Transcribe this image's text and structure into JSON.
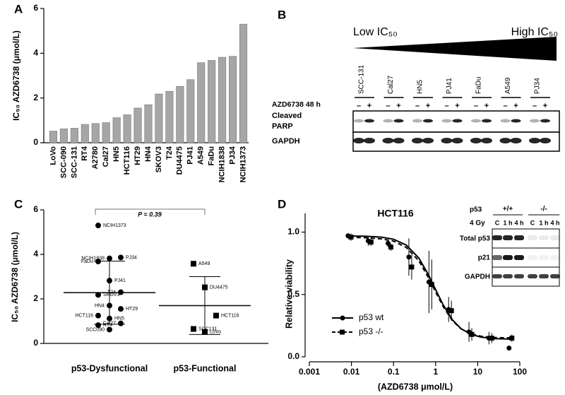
{
  "panel_labels": [
    "A",
    "B",
    "C",
    "D"
  ],
  "chart_data": [
    {
      "type": "bar",
      "ylabel": "IC₅₀ AZD6738 (μmol/L)",
      "categories": [
        "LoVo",
        "SCC-090",
        "SCC-131",
        "RT4",
        "A2780",
        "Cal27",
        "HN5",
        "HCT116",
        "HT29",
        "HN4",
        "SKOV3",
        "T24",
        "DU4475",
        "PJ41",
        "A549",
        "FaDu",
        "NCIH1838",
        "PJ34",
        "NCIH1373"
      ],
      "values": [
        0.52,
        0.62,
        0.65,
        0.82,
        0.86,
        0.9,
        1.12,
        1.25,
        1.55,
        1.7,
        2.18,
        2.3,
        2.52,
        2.82,
        3.58,
        3.68,
        3.82,
        3.86,
        5.3
      ],
      "color": "#a6a6a6",
      "ylim": [
        0,
        6
      ],
      "yticks": [
        0,
        2,
        4,
        6
      ]
    },
    {
      "type": "dot_plot",
      "ylabel": "IC₅₀ AZD6738 (μmol/L)",
      "annotation": "P = 0.39",
      "categories": [
        "p53-Dysfunctional",
        "p53-Functional"
      ],
      "groups": [
        {
          "marker": "circle",
          "labels": [
            "NCIH1373",
            "NCIH1838",
            "PJ34",
            "FaDu",
            "PJ41",
            "T24",
            "SKOV3",
            "HN4",
            "HT29",
            "HCT116",
            "HN5",
            "Cal27",
            "RT4",
            "SCC090"
          ],
          "values": [
            5.3,
            3.82,
            3.86,
            3.68,
            2.82,
            2.3,
            2.18,
            1.7,
            1.55,
            1.25,
            1.12,
            0.9,
            0.82,
            0.62
          ],
          "mean": 2.28,
          "sd_upper": 3.7,
          "sd_lower": 0.86
        },
        {
          "marker": "square",
          "labels": [
            "A549",
            "DU4475",
            "HCT116",
            "SCC131",
            "LoVo"
          ],
          "values": [
            3.58,
            2.52,
            1.25,
            0.65,
            0.52
          ],
          "mean": 1.7,
          "sd_upper": 3.0,
          "sd_lower": 0.4
        }
      ],
      "ylim": [
        0,
        6
      ],
      "yticks": [
        0,
        2,
        4,
        6
      ]
    },
    {
      "type": "line",
      "title": "HCT116",
      "xlabel": "(AZD6738 μmol/L)",
      "ylabel": "Relative viability",
      "xscale": "log",
      "x": [
        0.009,
        0.027,
        0.08,
        0.25,
        0.75,
        2.2,
        6.7,
        20,
        60
      ],
      "fit_x": [
        0.009,
        0.02,
        0.05,
        0.1,
        0.2,
        0.4,
        0.7,
        1,
        1.5,
        2.5,
        4,
        7,
        12,
        25,
        60
      ],
      "series": [
        {
          "name": "p53 wt",
          "color": "#000000",
          "marker": "circle",
          "dashed": false,
          "values": [
            0.97,
            0.93,
            0.91,
            0.8,
            0.6,
            0.38,
            0.2,
            0.15,
            0.07
          ],
          "errors": [
            0.02,
            0.04,
            0.03,
            0.15,
            0.25,
            0.1,
            0.08,
            0.05,
            0.02
          ],
          "fit": [
            0.969,
            0.967,
            0.96,
            0.943,
            0.897,
            0.792,
            0.649,
            0.539,
            0.419,
            0.297,
            0.226,
            0.18,
            0.158,
            0.146,
            0.142
          ]
        },
        {
          "name": "p53 -/-",
          "color": "#000000",
          "marker": "square",
          "dashed": true,
          "values": [
            0.96,
            0.92,
            0.88,
            0.72,
            0.58,
            0.37,
            0.18,
            0.15,
            0.15
          ],
          "errors": [
            0.03,
            0.03,
            0.03,
            0.1,
            0.2,
            0.08,
            0.05,
            0.04,
            0.03
          ],
          "fit": [
            0.958,
            0.955,
            0.946,
            0.928,
            0.878,
            0.77,
            0.625,
            0.52,
            0.405,
            0.29,
            0.225,
            0.183,
            0.165,
            0.155,
            0.152
          ]
        }
      ],
      "xlim": [
        0.001,
        100
      ],
      "xticks": [
        0.001,
        0.01,
        0.1,
        1,
        10,
        100
      ],
      "ylim": [
        0,
        1.15
      ],
      "yticks": [
        {
          "value": 0,
          "label": "0.0"
        },
        0.5,
        {
          "value": 1,
          "label": "1.0"
        }
      ]
    }
  ],
  "blot_b": {
    "low": "Low IC₅₀",
    "high": "High IC₅₀",
    "cell_lines": [
      "SCC-131",
      "Cal27",
      "HN5",
      "PJ41",
      "FaDu",
      "A549",
      "PJ34"
    ],
    "treatment_label": "AZD6738 48 h",
    "signs": [
      "–",
      "+"
    ],
    "rows": [
      [
        "Cleaved",
        "PARP"
      ],
      [
        "GAPDH"
      ]
    ]
  },
  "blot_d": {
    "protein": "p53",
    "genotypes": [
      "+/+",
      "-/-"
    ],
    "treatment_label": "4 Gy",
    "timepoints": [
      "C",
      "1 h",
      "4 h"
    ],
    "rows": [
      "Total p53",
      "p21",
      "GAPDH"
    ]
  }
}
